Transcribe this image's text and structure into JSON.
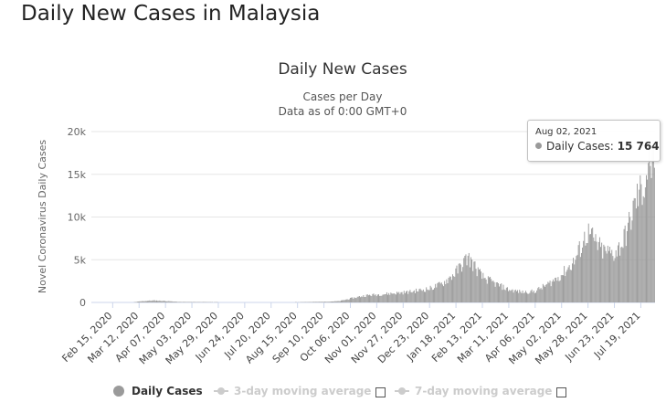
{
  "page": {
    "heading": "Daily New Cases in Malaysia"
  },
  "chart_data": {
    "type": "bar",
    "title": "Daily New Cases",
    "subtitle_lines": [
      "Cases per Day",
      "Data as of 0:00 GMT+0"
    ],
    "ylabel": "Novel Coronavirus Daily Cases",
    "xlabel": "",
    "ylim": [
      0,
      20000
    ],
    "yticks": [
      0,
      5000,
      10000,
      15000,
      20000
    ],
    "ytick_labels": [
      "0",
      "5k",
      "10k",
      "15k",
      "20k"
    ],
    "x_start": "2020-01-25",
    "x_end": "2021-08-02",
    "xtick_labels": [
      "Feb 15, 2020",
      "Mar 12, 2020",
      "Apr 07, 2020",
      "May 03, 2020",
      "May 29, 2020",
      "Jun 24, 2020",
      "Jul 20, 2020",
      "Aug 15, 2020",
      "Sep 10, 2020",
      "Oct 06, 2020",
      "Nov 01, 2020",
      "Nov 27, 2020",
      "Dec 23, 2020",
      "Jan 18, 2021",
      "Feb 13, 2021",
      "Mar 11, 2021",
      "Apr 06, 2021",
      "May 02, 2021",
      "May 28, 2021",
      "Jun 23, 2021",
      "Jul 19, 2021"
    ],
    "xtick_dates": [
      "2020-02-15",
      "2020-03-12",
      "2020-04-07",
      "2020-05-03",
      "2020-05-29",
      "2020-06-24",
      "2020-07-20",
      "2020-08-15",
      "2020-09-10",
      "2020-10-06",
      "2020-11-01",
      "2020-11-27",
      "2020-12-23",
      "2021-01-18",
      "2021-02-13",
      "2021-03-11",
      "2021-04-06",
      "2021-05-02",
      "2021-05-28",
      "2021-06-23",
      "2021-07-19"
    ],
    "grid": true,
    "legend_placement": "bottom",
    "series": [
      {
        "name": "Daily Cases",
        "color": "#9a9a9a",
        "trend_points": [
          [
            "2020-01-25",
            0
          ],
          [
            "2020-03-05",
            10
          ],
          [
            "2020-03-15",
            150
          ],
          [
            "2020-03-26",
            230
          ],
          [
            "2020-04-05",
            180
          ],
          [
            "2020-04-20",
            60
          ],
          [
            "2020-05-10",
            50
          ],
          [
            "2020-06-01",
            30
          ],
          [
            "2020-07-01",
            5
          ],
          [
            "2020-08-01",
            10
          ],
          [
            "2020-09-10",
            80
          ],
          [
            "2020-09-25",
            150
          ],
          [
            "2020-10-06",
            450
          ],
          [
            "2020-10-20",
            800
          ],
          [
            "2020-11-10",
            1000
          ],
          [
            "2020-12-01",
            1200
          ],
          [
            "2020-12-23",
            1600
          ],
          [
            "2021-01-05",
            2200
          ],
          [
            "2021-01-18",
            3500
          ],
          [
            "2021-01-30",
            5300
          ],
          [
            "2021-02-13",
            3000
          ],
          [
            "2021-02-26",
            2200
          ],
          [
            "2021-03-11",
            1500
          ],
          [
            "2021-03-25",
            1200
          ],
          [
            "2021-04-06",
            1300
          ],
          [
            "2021-04-20",
            2200
          ],
          [
            "2021-05-02",
            3200
          ],
          [
            "2021-05-15",
            4800
          ],
          [
            "2021-05-28",
            8200
          ],
          [
            "2021-06-05",
            7000
          ],
          [
            "2021-06-12",
            6000
          ],
          [
            "2021-06-23",
            5700
          ],
          [
            "2021-07-01",
            6800
          ],
          [
            "2021-07-08",
            9000
          ],
          [
            "2021-07-15",
            12000
          ],
          [
            "2021-07-22",
            13500
          ],
          [
            "2021-07-28",
            16500
          ],
          [
            "2021-08-02",
            15764
          ]
        ]
      },
      {
        "name": "3-day moving average",
        "color": "#cccccc",
        "visible": false
      },
      {
        "name": "7-day moving average",
        "color": "#cccccc",
        "visible": false
      }
    ],
    "tooltip": {
      "date": "Aug 02, 2021",
      "series_name": "Daily Cases",
      "value": "15 764"
    }
  },
  "legend": {
    "items": [
      "Daily Cases",
      "3-day moving average",
      "7-day moving average"
    ]
  }
}
